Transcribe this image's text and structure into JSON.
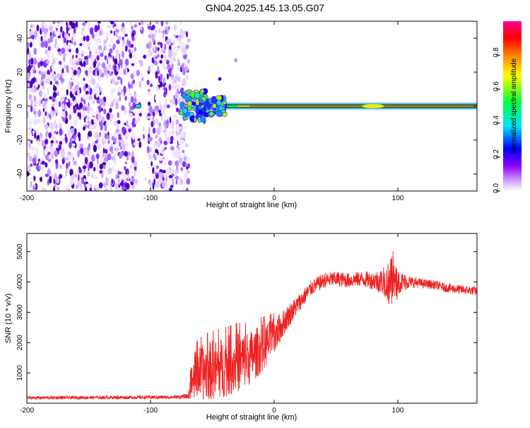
{
  "title": "GN04.2025.145.13.05.G07",
  "chart_data": [
    {
      "type": "heatmap",
      "title": "GN04.2025.145.13.05.G07",
      "xlabel": "Height of straight line (km)",
      "ylabel": "Frequency (Hz)",
      "xlim": [
        -200,
        164
      ],
      "ylim": [
        -50,
        50
      ],
      "xticks": [
        -200,
        -100,
        0,
        100
      ],
      "yticks": [
        -40,
        -20,
        0,
        20,
        40
      ],
      "colorbar": {
        "label": "Normalized spectral amplitude",
        "range": [
          0,
          1
        ],
        "ticks": [
          0.0,
          0.2,
          0.4,
          0.6,
          0.8
        ],
        "colors": [
          "#e8d8ff",
          "#8800ff",
          "#0000ff",
          "#00e0ff",
          "#00ff40",
          "#ffff00",
          "#ff8000",
          "#ff0000",
          "#ff0090"
        ]
      },
      "features": {
        "noise_region_km": [
          -200,
          -75
        ],
        "carrier_start_km": -75,
        "carrier_frequency_hz": 0
      }
    },
    {
      "type": "line",
      "xlabel": "Height of straight line (km)",
      "ylabel": "SNR (10 * v/v)",
      "xlim": [
        -200,
        164
      ],
      "ylim": [
        0,
        5600
      ],
      "xticks": [
        -200,
        -100,
        0,
        100
      ],
      "yticks": [
        1000,
        2000,
        3000,
        4000,
        5000
      ],
      "color": "#ee2222",
      "envelope": {
        "x": [
          -200,
          -80,
          -70,
          -65,
          -60,
          -50,
          -40,
          -30,
          -20,
          -10,
          0,
          10,
          20,
          30,
          40,
          50,
          60,
          70,
          80,
          90,
          95,
          100,
          110,
          120,
          130,
          140,
          150,
          164
        ],
        "mean": [
          180,
          200,
          230,
          900,
          1000,
          1100,
          1200,
          1350,
          1500,
          1800,
          2200,
          2800,
          3300,
          3800,
          4050,
          4100,
          4050,
          4100,
          4050,
          4000,
          3950,
          4000,
          4000,
          3950,
          3900,
          3800,
          3750,
          3700
        ],
        "spread": [
          50,
          60,
          80,
          800,
          900,
          1000,
          1000,
          1000,
          900,
          800,
          600,
          400,
          300,
          250,
          250,
          250,
          250,
          250,
          300,
          500,
          900,
          400,
          200,
          150,
          150,
          150,
          150,
          150
        ]
      }
    }
  ]
}
